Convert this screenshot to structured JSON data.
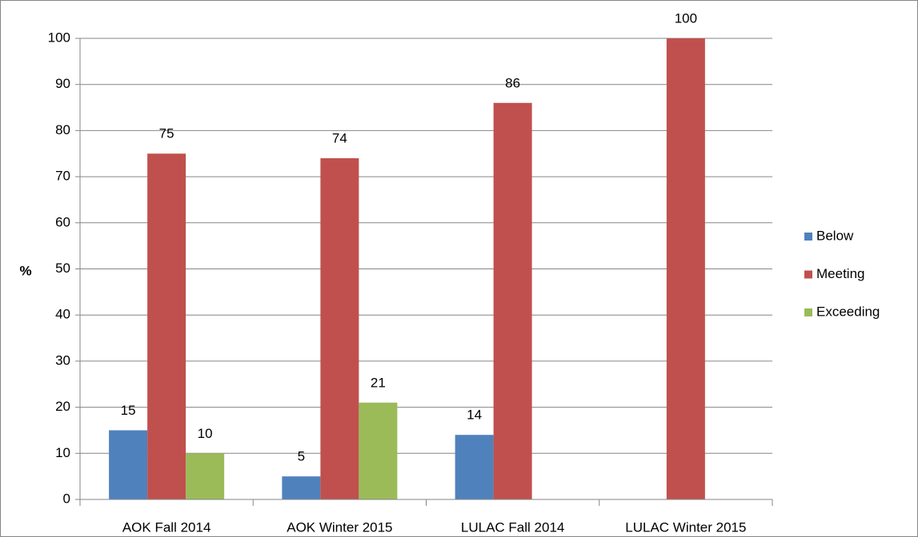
{
  "chart_data": {
    "type": "bar",
    "categories": [
      "AOK Fall 2014",
      "AOK Winter 2015",
      "LULAC Fall 2014",
      "LULAC Winter 2015"
    ],
    "series": [
      {
        "name": "Below",
        "color": "#4f81bd",
        "values": [
          15,
          5,
          14,
          null
        ]
      },
      {
        "name": "Meeting",
        "color": "#c0504d",
        "values": [
          75,
          74,
          86,
          100
        ]
      },
      {
        "name": "Exceeding",
        "color": "#9bbb59",
        "values": [
          10,
          21,
          null,
          null
        ]
      }
    ],
    "y_label": "%",
    "ylim": [
      0,
      100
    ],
    "yticks": [
      0,
      10,
      20,
      30,
      40,
      50,
      60,
      70,
      80,
      90,
      100
    ],
    "grid": true,
    "legend": "right"
  }
}
